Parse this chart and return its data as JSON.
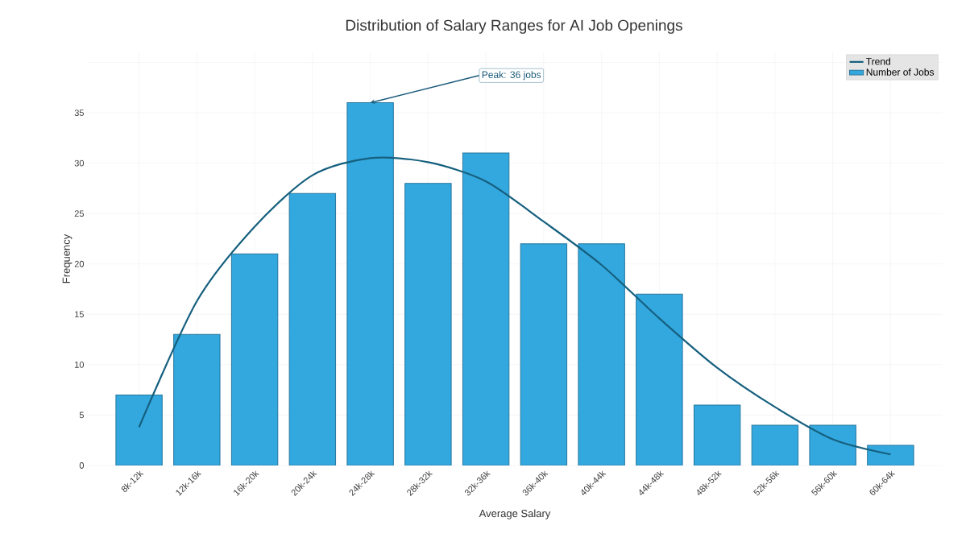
{
  "chart_data": {
    "type": "bar",
    "title": "Distribution of Salary Ranges for AI Job Openings",
    "xlabel": "Average Salary",
    "ylabel": "Frequency",
    "categories": [
      "8k-12k",
      "12k-16k",
      "16k-20k",
      "20k-24k",
      "24k-28k",
      "28k-32k",
      "32k-36k",
      "36k-40k",
      "40k-44k",
      "44k-48k",
      "48k-52k",
      "52k-56k",
      "56k-60k",
      "60k-64k"
    ],
    "series": [
      {
        "name": "Number of Jobs",
        "color": "#33a8df",
        "values": [
          7,
          13,
          21,
          27,
          36,
          28,
          31,
          22,
          22,
          17,
          6,
          4,
          4,
          2
        ]
      },
      {
        "name": "Trend",
        "type": "line",
        "color": "#16607f",
        "values": [
          3.8,
          16.3,
          23.7,
          28.8,
          30.5,
          30.1,
          28.2,
          24.2,
          19.9,
          14.6,
          9.7,
          5.8,
          2.6,
          1.1
        ]
      }
    ],
    "ylim": [
      0,
      41
    ],
    "yticks": [
      0,
      5,
      10,
      15,
      20,
      25,
      30,
      35,
      {
        "value": 40,
        "label": null
      }
    ],
    "annotations": [
      {
        "text": "Peak: 36 jobs",
        "x": "24k-28k",
        "y": 36
      }
    ],
    "grid": true,
    "legend": "top right"
  }
}
